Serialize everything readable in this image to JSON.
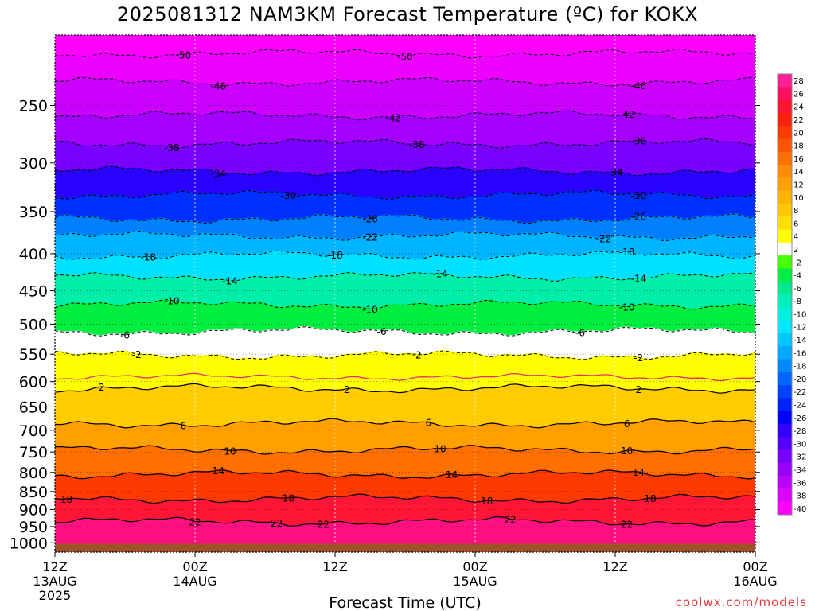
{
  "chart_data": {
    "type": "heatmap",
    "title": "2025081312 NAM3KM Forecast Temperature (ºC) for KOKX",
    "xlabel": "Forecast Time (UTC)",
    "ylabel": "",
    "y_scale": "log-pressure",
    "ylim": [
      1030,
      200
    ],
    "xlim": [
      0,
      60
    ],
    "x_ticks": [
      {
        "x": 0,
        "lines": [
          "12Z",
          "13AUG",
          "2025"
        ]
      },
      {
        "x": 12,
        "lines": [
          "00Z",
          "14AUG"
        ]
      },
      {
        "x": 24,
        "lines": [
          "12Z"
        ]
      },
      {
        "x": 36,
        "lines": [
          "00Z",
          "15AUG"
        ]
      },
      {
        "x": 48,
        "lines": [
          "12Z"
        ]
      },
      {
        "x": 60,
        "lines": [
          "00Z",
          "16AUG"
        ]
      }
    ],
    "y_ticks": [
      250,
      300,
      350,
      400,
      450,
      500,
      550,
      600,
      650,
      700,
      750,
      800,
      850,
      900,
      950,
      1000
    ],
    "colorbar": {
      "labels": [
        28,
        26,
        24,
        22,
        20,
        18,
        16,
        14,
        12,
        10,
        8,
        6,
        4,
        2,
        -2,
        -4,
        -6,
        -8,
        -10,
        -12,
        -14,
        -16,
        -18,
        -20,
        -22,
        -24,
        -26,
        -28,
        -30,
        -32,
        -34,
        -36,
        -38,
        -40
      ],
      "colors": [
        "#ff2099",
        "#ff1060",
        "#ff1530",
        "#ff2010",
        "#ff3a00",
        "#ff5500",
        "#ff7000",
        "#ff8c00",
        "#ffa000",
        "#ffb400",
        "#ffc800",
        "#ffe000",
        "#ffff00",
        "#ffffff",
        "#44ff00",
        "#00ee44",
        "#00e88c",
        "#00eebb",
        "#00f0e0",
        "#00e6ff",
        "#00c8ff",
        "#00a8ff",
        "#0088ff",
        "#0066ff",
        "#0044ff",
        "#0022ff",
        "#0000ff",
        "#3300ff",
        "#5500ff",
        "#7700ff",
        "#9900ff",
        "#bb00ff",
        "#dd00ff",
        "#ff00ff"
      ]
    },
    "isotherms": [
      {
        "temp": -50,
        "p0": 212,
        "labels_at": [
          11,
          30
        ]
      },
      {
        "temp": -46,
        "p0": 232,
        "labels_at": [
          14,
          50
        ]
      },
      {
        "temp": -42,
        "p0": 258,
        "labels_at": [
          29,
          49
        ]
      },
      {
        "temp": -38,
        "p0": 282,
        "labels_at": [
          10,
          31,
          50
        ]
      },
      {
        "temp": -34,
        "p0": 308,
        "labels_at": [
          14,
          48
        ]
      },
      {
        "temp": -30,
        "p0": 332,
        "labels_at": [
          20,
          50
        ]
      },
      {
        "temp": -26,
        "p0": 358,
        "labels_at": [
          27,
          50
        ]
      },
      {
        "temp": -22,
        "p0": 378,
        "labels_at": [
          27,
          47
        ]
      },
      {
        "temp": -18,
        "p0": 402,
        "labels_at": [
          8,
          24,
          49
        ]
      },
      {
        "temp": -14,
        "p0": 430,
        "labels_at": [
          15,
          33,
          50
        ]
      },
      {
        "temp": -10,
        "p0": 470,
        "labels_at": [
          10,
          27,
          49
        ]
      },
      {
        "temp": -6,
        "p0": 512,
        "labels_at": [
          6,
          28,
          45
        ]
      },
      {
        "temp": -2,
        "p0": 552,
        "labels_at": [
          7,
          31,
          50
        ]
      },
      {
        "temp": 2,
        "p0": 613,
        "labels_at": [
          4,
          25,
          50
        ]
      },
      {
        "temp": 6,
        "p0": 685,
        "labels_at": [
          11,
          32,
          49
        ]
      },
      {
        "temp": 10,
        "p0": 745,
        "labels_at": [
          15,
          33,
          49
        ]
      },
      {
        "temp": 14,
        "p0": 805,
        "labels_at": [
          14,
          34,
          50
        ]
      },
      {
        "temp": 18,
        "p0": 870,
        "labels_at": [
          1,
          20,
          37,
          51
        ]
      },
      {
        "temp": 22,
        "p0": 935,
        "labels_at": [
          12,
          19,
          23,
          39,
          49
        ]
      }
    ],
    "surface_color": "#a0522d",
    "freezing_line_color": "#e0307a"
  },
  "footer": {
    "credit": "coolwx.com/models"
  }
}
